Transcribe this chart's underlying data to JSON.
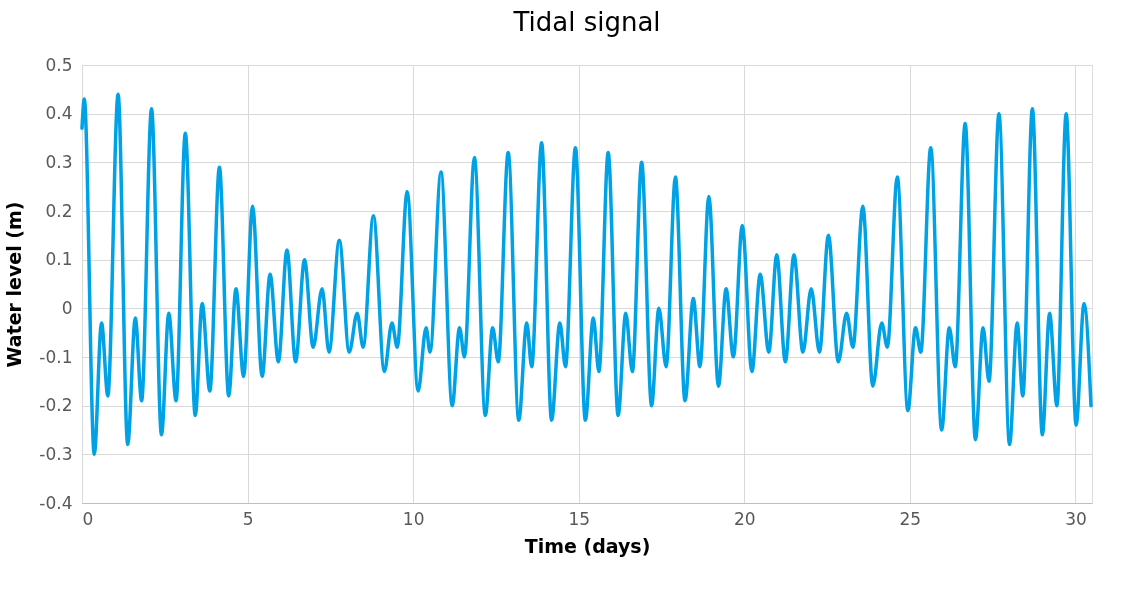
{
  "chart_data": {
    "type": "line",
    "title": "Tidal signal",
    "xlabel": "Time (days)",
    "ylabel": "Water level (m)",
    "xlim": [
      0,
      30.5
    ],
    "xticks": [
      0,
      5,
      10,
      15,
      20,
      25,
      30
    ],
    "ylim": [
      -0.4,
      0.5
    ],
    "yticks": [
      -0.4,
      -0.3,
      -0.2,
      -0.1,
      0,
      0.1,
      0.2,
      0.3,
      0.4,
      0.5
    ],
    "grid": true,
    "legend": false,
    "marker": "none",
    "line_style": "solid",
    "series": [
      {
        "color": "#00a2e6",
        "x": [
          0,
          0.07,
          0.37,
          0.59,
          0.78,
          1.09,
          1.38,
          1.61,
          1.8,
          2.1,
          2.4,
          2.62,
          2.84,
          3.12,
          3.42,
          3.63,
          3.86,
          4.15,
          4.43,
          4.65,
          4.88,
          5.15,
          5.44,
          5.68,
          5.93,
          6.19,
          6.45,
          6.72,
          6.98,
          7.25,
          7.46,
          7.77,
          8.07,
          8.31,
          8.49,
          8.8,
          9.13,
          9.36,
          9.52,
          9.82,
          10.15,
          10.39,
          10.51,
          10.84,
          11.18,
          11.4,
          11.55,
          11.85,
          12.18,
          12.4,
          12.57,
          12.87,
          13.19,
          13.43,
          13.58,
          13.88,
          14.18,
          14.43,
          14.6,
          14.9,
          15.2,
          15.44,
          15.61,
          15.89,
          16.19,
          16.42,
          16.62,
          16.9,
          17.2,
          17.42,
          17.64,
          17.92,
          18.21,
          18.46,
          18.66,
          18.93,
          19.22,
          19.45,
          19.67,
          19.94,
          20.23,
          20.48,
          20.74,
          20.98,
          21.24,
          21.5,
          21.77,
          22.02,
          22.27,
          22.54,
          22.84,
          23.09,
          23.28,
          23.58,
          23.88,
          24.15,
          24.32,
          24.62,
          24.94,
          25.17,
          25.33,
          25.63,
          25.96,
          26.19,
          26.37,
          26.67,
          26.98,
          27.21,
          27.39,
          27.69,
          28.01,
          28.24,
          28.41,
          28.7,
          29.0,
          29.22,
          29.44,
          29.72,
          30.02,
          30.26,
          30.47
        ],
        "values": [
          0.37,
          0.43,
          -0.3,
          -0.03,
          -0.18,
          0.44,
          -0.28,
          -0.02,
          -0.19,
          0.41,
          -0.26,
          -0.01,
          -0.19,
          0.36,
          -0.22,
          0.01,
          -0.17,
          0.29,
          -0.18,
          0.04,
          -0.14,
          0.21,
          -0.14,
          0.07,
          -0.11,
          0.12,
          -0.11,
          0.1,
          -0.08,
          0.04,
          -0.09,
          0.14,
          -0.09,
          -0.01,
          -0.08,
          0.19,
          -0.13,
          -0.03,
          -0.08,
          0.24,
          -0.17,
          -0.04,
          -0.09,
          0.28,
          -0.2,
          -0.04,
          -0.1,
          0.31,
          -0.22,
          -0.04,
          -0.11,
          0.32,
          -0.23,
          -0.03,
          -0.12,
          0.34,
          -0.23,
          -0.03,
          -0.12,
          0.33,
          -0.23,
          -0.02,
          -0.13,
          0.32,
          -0.22,
          -0.01,
          -0.13,
          0.3,
          -0.2,
          0.0,
          -0.12,
          0.27,
          -0.19,
          0.02,
          -0.12,
          0.23,
          -0.16,
          0.04,
          -0.1,
          0.17,
          -0.13,
          0.07,
          -0.09,
          0.11,
          -0.11,
          0.11,
          -0.09,
          0.04,
          -0.09,
          0.15,
          -0.11,
          -0.01,
          -0.08,
          0.21,
          -0.16,
          -0.03,
          -0.08,
          0.27,
          -0.21,
          -0.04,
          -0.09,
          0.33,
          -0.25,
          -0.04,
          -0.12,
          0.38,
          -0.27,
          -0.04,
          -0.15,
          0.4,
          -0.28,
          -0.03,
          -0.18,
          0.41,
          -0.26,
          -0.01,
          -0.2,
          0.4,
          -0.24,
          0.01,
          -0.2
        ]
      }
    ]
  }
}
